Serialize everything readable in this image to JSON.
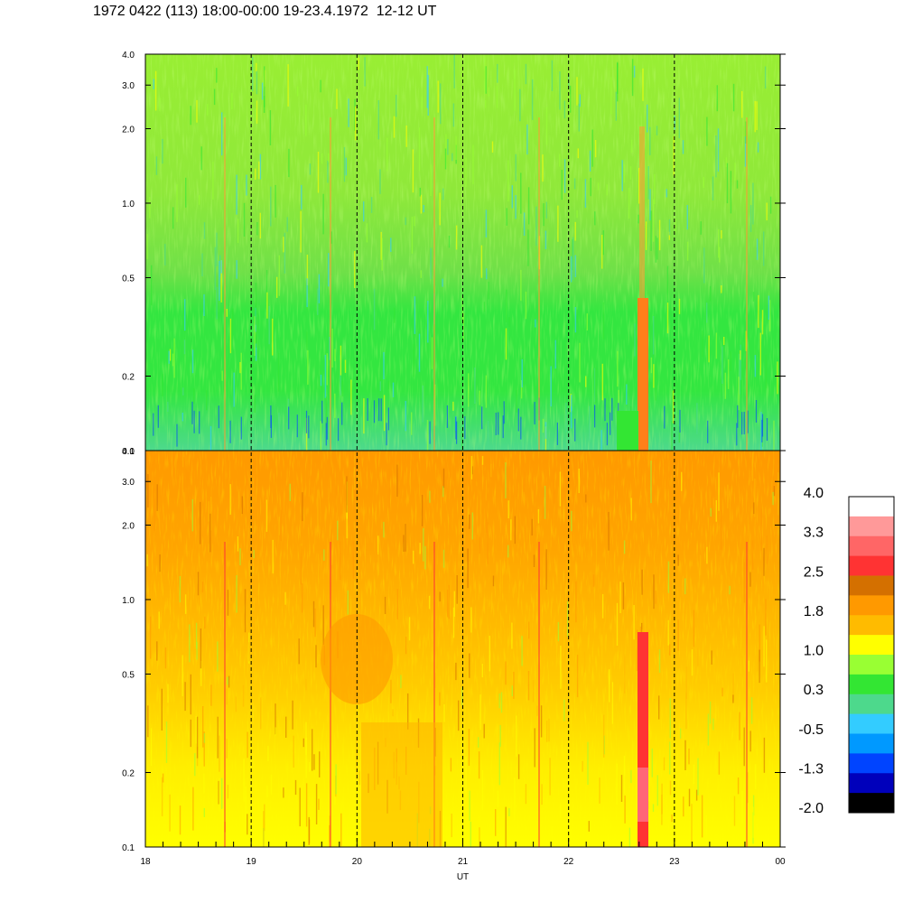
{
  "header": {
    "title": "1972 0422 (113) 18:00-00:00 19-23.4.1972  12-12 UT"
  },
  "chart_data": [
    {
      "type": "heatmap",
      "panel": "top",
      "title": "",
      "xlabel": "",
      "ylabel": "",
      "y_scale": "log",
      "ylim": [
        0.1,
        4.0
      ],
      "y_ticks": [
        "0.1",
        "0.2",
        "0.5",
        "1.0",
        "2.0",
        "3.0",
        "4.0"
      ],
      "x_ticks": [
        "18",
        "19",
        "20",
        "21",
        "22",
        "23",
        "00"
      ],
      "vertical_dashed_lines_at": [
        "19",
        "20",
        "21",
        "22",
        "23"
      ],
      "dominant_levels": {
        "low_freq": "0.3 (green)",
        "high_freq": "1.0 (yellow-green)"
      },
      "notable_feature": "orange/red band near 22:40 UT extending up to ~0.5"
    },
    {
      "type": "heatmap",
      "panel": "bottom",
      "title": "",
      "xlabel": "UT",
      "ylabel": "",
      "y_scale": "log",
      "ylim": [
        0.1,
        4.0
      ],
      "y_ticks": [
        "0.1",
        "0.2",
        "0.5",
        "1.0",
        "2.0",
        "3.0",
        "4.0"
      ],
      "x_ticks": [
        "18",
        "19",
        "20",
        "21",
        "22",
        "23",
        "00"
      ],
      "vertical_dashed_lines_at": [
        "19",
        "20",
        "21",
        "22",
        "23"
      ],
      "dominant_levels": {
        "low_freq": "1.0 (yellow)",
        "high_freq": "1.8 (orange)"
      },
      "notable_feature": "red/pink band near 22:40 UT"
    }
  ],
  "colorbar": {
    "labels": [
      "4.0",
      "3.3",
      "2.5",
      "1.8",
      "1.0",
      "0.3",
      "-0.5",
      "-1.3",
      "-2.0"
    ],
    "colors": [
      "#ffffff",
      "#ff9999",
      "#ff6666",
      "#ff3333",
      "#d47000",
      "#ff9900",
      "#ffbb00",
      "#ffff00",
      "#99ff33",
      "#33e633",
      "#4dd98c",
      "#33ccff",
      "#0099ff",
      "#0044ff",
      "#0000bb",
      "#000000"
    ]
  },
  "xaxis_label": "UT"
}
